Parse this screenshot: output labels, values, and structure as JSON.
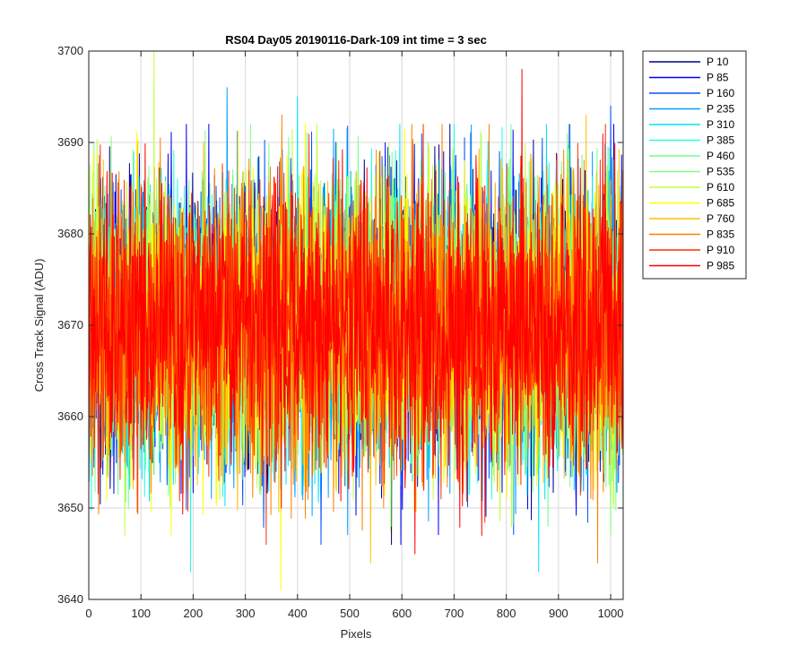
{
  "chart_data": {
    "type": "line",
    "title": "RS04 Day05 20190116-Dark-109 int time = 3 sec",
    "xlabel": "Pixels",
    "ylabel": "Cross Track Signal (ADU)",
    "xlim": [
      0,
      1024
    ],
    "ylim": [
      3640,
      3700
    ],
    "xticks": [
      "0",
      "100",
      "200",
      "300",
      "400",
      "500",
      "600",
      "700",
      "800",
      "900",
      "1000"
    ],
    "yticks": [
      "3640",
      "3650",
      "3660",
      "3670",
      "3680",
      "3690",
      "3700"
    ],
    "grid": true,
    "legend_position": "outside-right",
    "n_points": 1024,
    "noise_mean": 3670,
    "noise_sd": 8,
    "series": [
      {
        "name": "P 10",
        "color": "#00008f",
        "peak_x": 590,
        "peak_y": 3688,
        "min_x": 580,
        "min_y": 3646
      },
      {
        "name": "P 85",
        "color": "#0000ef",
        "peak_x": 230,
        "peak_y": 3692,
        "min_x": 598,
        "min_y": 3646
      },
      {
        "name": "P 160",
        "color": "#0050ff",
        "peak_x": 1000,
        "peak_y": 3694,
        "min_x": 445,
        "min_y": 3646
      },
      {
        "name": "P 235",
        "color": "#00a0ff",
        "peak_x": 265,
        "peak_y": 3696,
        "min_x": 580,
        "min_y": 3648
      },
      {
        "name": "P 310",
        "color": "#00dfff",
        "peak_x": 400,
        "peak_y": 3695,
        "min_x": 862,
        "min_y": 3643
      },
      {
        "name": "P 385",
        "color": "#20ffdf",
        "peak_x": 700,
        "peak_y": 3692,
        "min_x": 195,
        "min_y": 3643
      },
      {
        "name": "P 460",
        "color": "#70ff8f",
        "peak_x": 650,
        "peak_y": 3690,
        "min_x": 880,
        "min_y": 3648
      },
      {
        "name": "P 535",
        "color": "#80ff80",
        "peak_x": 475,
        "peak_y": 3690,
        "min_x": 1000,
        "min_y": 3647
      },
      {
        "name": "P 610",
        "color": "#bfff40",
        "peak_x": 125,
        "peak_y": 3700,
        "min_x": 810,
        "min_y": 3648
      },
      {
        "name": "P 685",
        "color": "#ffff00",
        "peak_x": 720,
        "peak_y": 3688,
        "min_x": 368,
        "min_y": 3641
      },
      {
        "name": "P 760",
        "color": "#ffc000",
        "peak_x": 953,
        "peak_y": 3693,
        "min_x": 540,
        "min_y": 3644
      },
      {
        "name": "P 835",
        "color": "#ff8000",
        "peak_x": 370,
        "peak_y": 3693,
        "min_x": 975,
        "min_y": 3644
      },
      {
        "name": "P 910",
        "color": "#ff3000",
        "peak_x": 990,
        "peak_y": 3692,
        "min_x": 340,
        "min_y": 3646
      },
      {
        "name": "P 985",
        "color": "#ff0000",
        "peak_x": 830,
        "peak_y": 3698,
        "min_x": 625,
        "min_y": 3645
      }
    ]
  }
}
